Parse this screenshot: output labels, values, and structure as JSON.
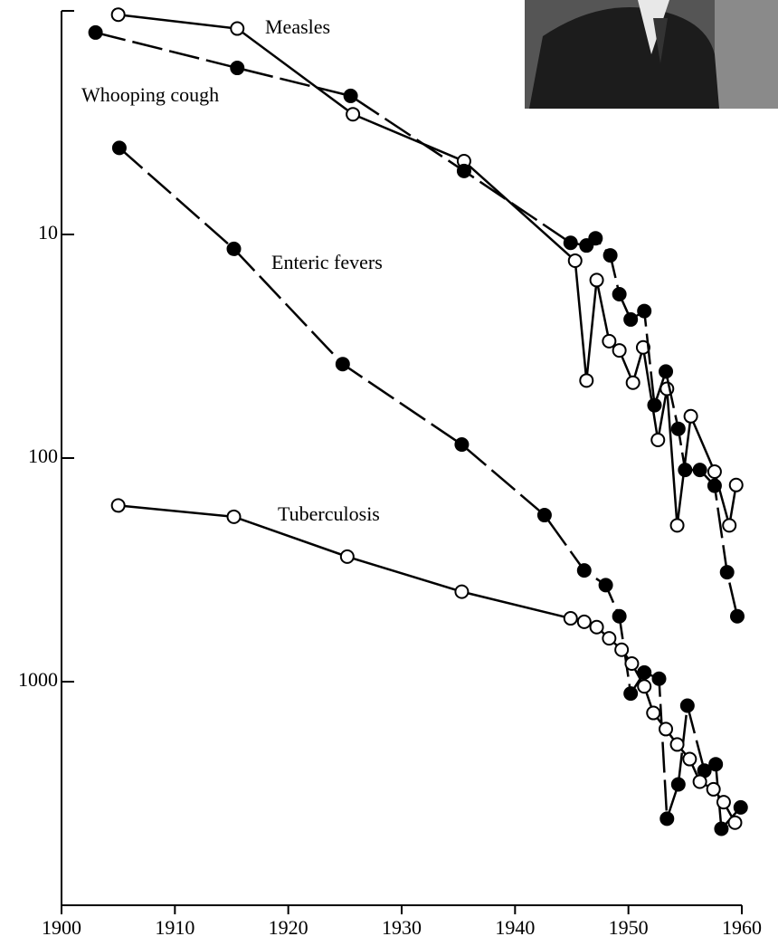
{
  "chart_data": {
    "type": "line",
    "log_y": true,
    "y_inverted": true,
    "xlim": [
      1900,
      1960
    ],
    "xticks": [
      1900,
      1910,
      1920,
      1930,
      1940,
      1950,
      1960
    ],
    "ylim": [
      1,
      10000
    ],
    "yticks": [
      10,
      100,
      1000
    ],
    "series": [
      {
        "name": "Measles",
        "color": "#000",
        "marker": "open",
        "dashed": false,
        "x": [
          1905,
          1915.5,
          1925.7,
          1935.5,
          1945.3,
          1946.3,
          1947.2,
          1948.3,
          1949.2,
          1950.4,
          1951.3,
          1952.6,
          1953.4,
          1954.3,
          1955.5,
          1957.6,
          1958.9,
          1959.5
        ],
        "values": [
          1.04,
          1.2,
          2.9,
          4.7,
          13.1,
          45,
          16,
          30,
          33,
          46,
          32,
          83,
          49,
          200,
          65,
          115,
          200,
          132
        ]
      },
      {
        "name": "Whooping cough",
        "color": "#000",
        "marker": "filled",
        "dashed": true,
        "x": [
          1903,
          1915.5,
          1925.5,
          1935.5,
          1944.9,
          1946.3,
          1947.1,
          1948.4,
          1949.2,
          1950.2,
          1951.4,
          1952.3,
          1953.3,
          1954.4,
          1955,
          1956.3,
          1957.6,
          1958.7,
          1959.6
        ],
        "values": [
          1.25,
          1.8,
          2.4,
          5.2,
          10.9,
          11.2,
          10.4,
          12.4,
          18.5,
          24,
          22,
          58,
          41,
          74,
          113,
          113,
          133,
          324,
          510
        ]
      },
      {
        "name": "Enteric fevers",
        "color": "#000",
        "marker": "filled",
        "dashed": true,
        "x": [
          1905.1,
          1915.2,
          1924.8,
          1935.3,
          1942.6,
          1946.1,
          1948,
          1949.2,
          1950.2,
          1951.4,
          1952.7,
          1953.4,
          1954.4,
          1955.2,
          1956.7,
          1957.7,
          1958.2,
          1959.9
        ],
        "values": [
          4.1,
          11.6,
          38,
          87,
          180,
          318,
          370,
          510,
          1130,
          910,
          970,
          4100,
          2880,
          1280,
          2500,
          2340,
          4550,
          3650
        ]
      },
      {
        "name": "Tuberculosis",
        "color": "#000",
        "marker": "open",
        "dashed": false,
        "x": [
          1905,
          1915.2,
          1925.2,
          1935.3,
          1944.9,
          1946.1,
          1947.2,
          1948.3,
          1949.4,
          1950.3,
          1951.4,
          1952.2,
          1953.3,
          1954.3,
          1955.4,
          1956.3,
          1957.5,
          1958.4,
          1959.4
        ],
        "values": [
          163,
          183,
          276,
          396,
          521,
          540,
          570,
          640,
          720,
          830,
          1050,
          1380,
          1630,
          1910,
          2220,
          2800,
          3030,
          3460,
          4270
        ]
      }
    ]
  }
}
